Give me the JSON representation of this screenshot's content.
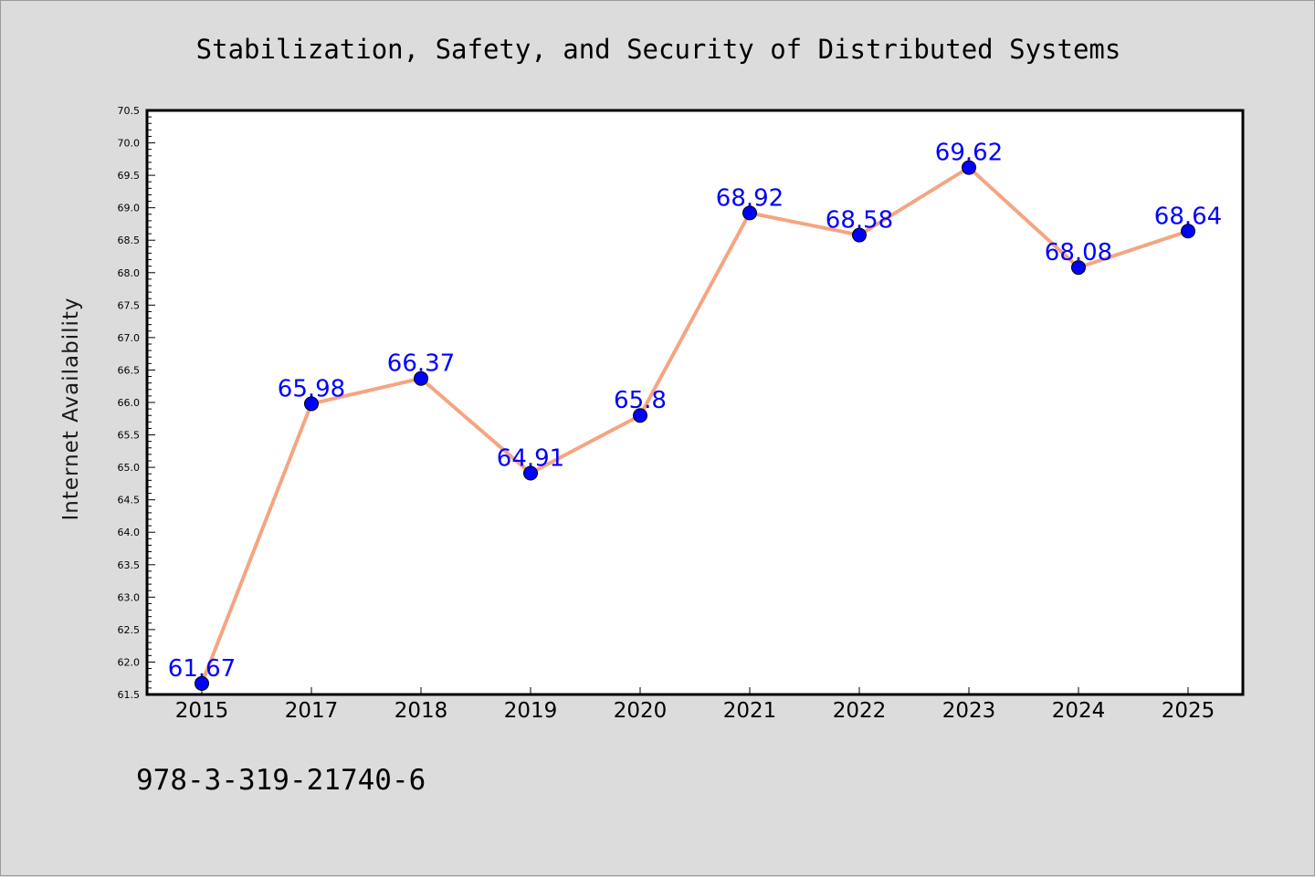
{
  "chart_data": {
    "type": "line",
    "title": "Stabilization, Safety, and Security of Distributed Systems",
    "xlabel": "",
    "ylabel": "Internet Availability",
    "categories": [
      "2015",
      "2017",
      "2018",
      "2019",
      "2020",
      "2021",
      "2022",
      "2023",
      "2024",
      "2025"
    ],
    "series": [
      {
        "values": [
          61.67,
          65.98,
          66.37,
          64.91,
          65.8,
          68.92,
          68.58,
          69.62,
          68.08,
          68.64
        ],
        "labels": [
          "61.67",
          "65.98",
          "66.37",
          "64.91",
          "65.8",
          "68.92",
          "68.58",
          "69.62",
          "68.08",
          "68.64"
        ],
        "line_color": "#f4a582",
        "marker_color": "#0000ff"
      }
    ],
    "ylim": [
      61.5,
      70.5
    ],
    "yticks": [
      "61.5",
      "62.0",
      "62.5",
      "63.0",
      "63.5",
      "64.0",
      "64.5",
      "65.0",
      "65.5",
      "66.0",
      "66.5",
      "67.0",
      "67.5",
      "68.0",
      "68.5",
      "69.0",
      "69.5",
      "70.0",
      "70.5"
    ],
    "grid": false,
    "legend": "none"
  },
  "footer": {
    "isbn": "978-3-319-21740-6"
  },
  "colors": {
    "background": "#dcdcdc",
    "plot_background": "#ffffff",
    "line": "#f4a582",
    "marker": "#0000ff",
    "data_label": "#0000ff"
  }
}
